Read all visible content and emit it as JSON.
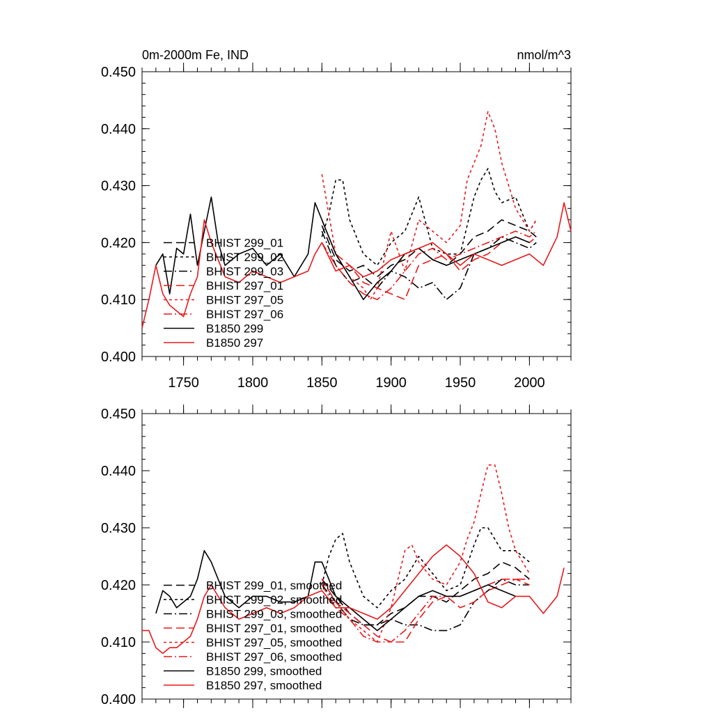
{
  "figure": {
    "title_left": "0m-2000m Fe, IND",
    "title_right": "nmol/m^3"
  },
  "chart_data": [
    {
      "type": "line",
      "panel": "top",
      "title": "0m-2000m Fe, IND",
      "units": "nmol/m^3",
      "xlim": [
        1720,
        2030
      ],
      "ylim": [
        0.4,
        0.45
      ],
      "x_ticks": [
        1750,
        1800,
        1850,
        1900,
        1950,
        2000
      ],
      "x_tick_labels": [
        "1750",
        "1800",
        "1850",
        "1900",
        "1950",
        "2000"
      ],
      "y_ticks": [
        0.4,
        0.41,
        0.42,
        0.43,
        0.44,
        0.45
      ],
      "y_tick_labels": [
        "0.400",
        "0.410",
        "0.420",
        "0.430",
        "0.440",
        "0.450"
      ],
      "legend_position": "lower-left",
      "series": [
        {
          "name": "BHIST 299_01",
          "color": "#000000",
          "dash": "long-dash",
          "x": [
            1850,
            1860,
            1870,
            1880,
            1890,
            1900,
            1910,
            1920,
            1930,
            1940,
            1950,
            1960,
            1970,
            1980,
            1990,
            2000,
            2005
          ],
          "y": [
            0.423,
            0.417,
            0.415,
            0.416,
            0.414,
            0.416,
            0.417,
            0.419,
            0.417,
            0.416,
            0.418,
            0.421,
            0.422,
            0.424,
            0.423,
            0.422,
            0.421
          ]
        },
        {
          "name": "BHIST 299_02",
          "color": "#000000",
          "dash": "short-dash",
          "x": [
            1850,
            1855,
            1860,
            1865,
            1870,
            1880,
            1890,
            1900,
            1910,
            1920,
            1930,
            1940,
            1950,
            1960,
            1965,
            1970,
            1975,
            1980,
            1990,
            2000,
            2005
          ],
          "y": [
            0.421,
            0.425,
            0.431,
            0.431,
            0.424,
            0.418,
            0.416,
            0.42,
            0.422,
            0.428,
            0.419,
            0.418,
            0.418,
            0.428,
            0.431,
            0.433,
            0.429,
            0.427,
            0.428,
            0.422,
            0.424
          ]
        },
        {
          "name": "BHIST 299_03",
          "color": "#000000",
          "dash": "dash-dot",
          "x": [
            1850,
            1860,
            1870,
            1880,
            1890,
            1900,
            1910,
            1920,
            1930,
            1940,
            1950,
            1960,
            1970,
            1980,
            1990,
            2000,
            2005
          ],
          "y": [
            0.422,
            0.416,
            0.413,
            0.414,
            0.412,
            0.415,
            0.414,
            0.412,
            0.413,
            0.41,
            0.412,
            0.418,
            0.419,
            0.421,
            0.42,
            0.419,
            0.42
          ]
        },
        {
          "name": "BHIST 297_01",
          "color": "#e8191c",
          "dash": "long-dash",
          "x": [
            1850,
            1860,
            1870,
            1880,
            1890,
            1900,
            1910,
            1920,
            1930,
            1940,
            1950,
            1960,
            1970,
            1980,
            1990,
            2000,
            2005
          ],
          "y": [
            0.424,
            0.418,
            0.416,
            0.413,
            0.412,
            0.411,
            0.41,
            0.416,
            0.417,
            0.418,
            0.415,
            0.417,
            0.418,
            0.42,
            0.421,
            0.42,
            0.421
          ]
        },
        {
          "name": "BHIST 297_05",
          "color": "#e8191c",
          "dash": "short-dash",
          "x": [
            1850,
            1860,
            1870,
            1880,
            1885,
            1890,
            1900,
            1910,
            1920,
            1930,
            1940,
            1950,
            1955,
            1960,
            1965,
            1970,
            1975,
            1980,
            1985,
            1990,
            2000,
            2005
          ],
          "y": [
            0.432,
            0.418,
            0.414,
            0.412,
            0.41,
            0.412,
            0.422,
            0.415,
            0.424,
            0.422,
            0.42,
            0.423,
            0.431,
            0.434,
            0.437,
            0.443,
            0.44,
            0.434,
            0.43,
            0.426,
            0.422,
            0.424
          ]
        },
        {
          "name": "BHIST 297_06",
          "color": "#e8191c",
          "dash": "dash-dot",
          "x": [
            1850,
            1860,
            1870,
            1880,
            1890,
            1900,
            1910,
            1920,
            1930,
            1940,
            1950,
            1960,
            1970,
            1980,
            1990,
            2000,
            2005
          ],
          "y": [
            0.42,
            0.416,
            0.413,
            0.411,
            0.41,
            0.412,
            0.415,
            0.418,
            0.419,
            0.417,
            0.418,
            0.419,
            0.42,
            0.421,
            0.422,
            0.421,
            0.422
          ]
        },
        {
          "name": "B1850 299",
          "color": "#000000",
          "dash": "solid",
          "x": [
            1730,
            1735,
            1740,
            1745,
            1750,
            1755,
            1760,
            1765,
            1770,
            1775,
            1780,
            1790,
            1800,
            1810,
            1820,
            1830,
            1840,
            1845,
            1850,
            1860,
            1870,
            1880,
            1890,
            1900,
            1910,
            1920,
            1930,
            1940,
            1950,
            1960,
            1970,
            1980,
            1990,
            2000
          ],
          "y": [
            0.416,
            0.418,
            0.411,
            0.419,
            0.418,
            0.425,
            0.416,
            0.422,
            0.428,
            0.42,
            0.416,
            0.418,
            0.419,
            0.416,
            0.418,
            0.414,
            0.418,
            0.427,
            0.424,
            0.418,
            0.414,
            0.41,
            0.413,
            0.415,
            0.418,
            0.419,
            0.417,
            0.416,
            0.417,
            0.418,
            0.419,
            0.42,
            0.421,
            0.42
          ]
        },
        {
          "name": "B1850 297",
          "color": "#e8191c",
          "dash": "solid",
          "x": [
            1720,
            1725,
            1730,
            1735,
            1740,
            1745,
            1750,
            1755,
            1760,
            1765,
            1770,
            1780,
            1790,
            1800,
            1810,
            1820,
            1830,
            1840,
            1845,
            1850,
            1860,
            1870,
            1880,
            1890,
            1900,
            1910,
            1920,
            1930,
            1940,
            1950,
            1960,
            1970,
            1980,
            1990,
            2000,
            2010,
            2020,
            2025,
            2030
          ],
          "y": [
            0.405,
            0.41,
            0.416,
            0.411,
            0.409,
            0.408,
            0.407,
            0.411,
            0.414,
            0.424,
            0.42,
            0.414,
            0.413,
            0.415,
            0.414,
            0.413,
            0.414,
            0.415,
            0.418,
            0.42,
            0.415,
            0.416,
            0.414,
            0.415,
            0.417,
            0.418,
            0.419,
            0.42,
            0.418,
            0.416,
            0.418,
            0.417,
            0.416,
            0.417,
            0.418,
            0.416,
            0.421,
            0.427,
            0.422
          ]
        }
      ]
    },
    {
      "type": "line",
      "panel": "bottom",
      "xlim": [
        1720,
        2030
      ],
      "ylim": [
        0.4,
        0.45
      ],
      "y_ticks": [
        0.4,
        0.41,
        0.42,
        0.43,
        0.44,
        0.45
      ],
      "y_tick_labels": [
        "0.400",
        "0.410",
        "0.420",
        "0.430",
        "0.440",
        "0.450"
      ],
      "legend_position": "lower-left",
      "series": [
        {
          "name": "BHIST 299_01, smoothed",
          "color": "#000000",
          "dash": "long-dash",
          "x": [
            1850,
            1860,
            1870,
            1880,
            1890,
            1900,
            1910,
            1920,
            1930,
            1940,
            1950,
            1960,
            1970,
            1980,
            1990,
            2000
          ],
          "y": [
            0.421,
            0.418,
            0.415,
            0.413,
            0.413,
            0.415,
            0.416,
            0.418,
            0.418,
            0.417,
            0.419,
            0.421,
            0.422,
            0.424,
            0.423,
            0.421
          ]
        },
        {
          "name": "BHIST 299_02, smoothed",
          "color": "#000000",
          "dash": "short-dash",
          "x": [
            1850,
            1855,
            1860,
            1865,
            1870,
            1880,
            1890,
            1900,
            1910,
            1920,
            1930,
            1940,
            1950,
            1960,
            1965,
            1970,
            1975,
            1980,
            1990,
            2000
          ],
          "y": [
            0.42,
            0.425,
            0.428,
            0.429,
            0.424,
            0.418,
            0.416,
            0.419,
            0.421,
            0.425,
            0.422,
            0.419,
            0.42,
            0.427,
            0.43,
            0.43,
            0.428,
            0.426,
            0.426,
            0.424
          ]
        },
        {
          "name": "BHIST 299_03, smoothed",
          "color": "#000000",
          "dash": "dash-dot",
          "x": [
            1850,
            1860,
            1870,
            1880,
            1890,
            1900,
            1910,
            1920,
            1930,
            1940,
            1950,
            1960,
            1970,
            1980,
            1990,
            2000
          ],
          "y": [
            0.42,
            0.417,
            0.414,
            0.413,
            0.413,
            0.414,
            0.413,
            0.413,
            0.412,
            0.412,
            0.413,
            0.417,
            0.419,
            0.421,
            0.42,
            0.42
          ]
        },
        {
          "name": "BHIST 297_01, smoothed",
          "color": "#e8191c",
          "dash": "long-dash",
          "x": [
            1850,
            1860,
            1870,
            1880,
            1890,
            1900,
            1910,
            1920,
            1930,
            1940,
            1950,
            1960,
            1970,
            1980,
            1990,
            2000
          ],
          "y": [
            0.421,
            0.417,
            0.415,
            0.413,
            0.411,
            0.41,
            0.41,
            0.414,
            0.417,
            0.418,
            0.416,
            0.417,
            0.419,
            0.42,
            0.421,
            0.42
          ]
        },
        {
          "name": "BHIST 297_05, smoothed",
          "color": "#e8191c",
          "dash": "short-dash",
          "x": [
            1850,
            1860,
            1870,
            1880,
            1890,
            1900,
            1910,
            1915,
            1920,
            1930,
            1940,
            1950,
            1955,
            1960,
            1965,
            1970,
            1975,
            1980,
            1985,
            1990,
            2000
          ],
          "y": [
            0.421,
            0.417,
            0.414,
            0.412,
            0.41,
            0.416,
            0.426,
            0.427,
            0.424,
            0.421,
            0.42,
            0.424,
            0.428,
            0.431,
            0.436,
            0.441,
            0.441,
            0.436,
            0.43,
            0.426,
            0.422
          ]
        },
        {
          "name": "BHIST 297_06, smoothed",
          "color": "#e8191c",
          "dash": "dash-dot",
          "x": [
            1850,
            1860,
            1870,
            1880,
            1890,
            1900,
            1910,
            1920,
            1930,
            1940,
            1950,
            1960,
            1970,
            1980,
            1990,
            2000
          ],
          "y": [
            0.42,
            0.416,
            0.414,
            0.411,
            0.41,
            0.41,
            0.412,
            0.415,
            0.418,
            0.418,
            0.418,
            0.419,
            0.42,
            0.421,
            0.421,
            0.421
          ]
        },
        {
          "name": "B1850 299, smoothed",
          "color": "#000000",
          "dash": "solid",
          "x": [
            1730,
            1735,
            1740,
            1745,
            1750,
            1755,
            1760,
            1765,
            1770,
            1780,
            1790,
            1800,
            1810,
            1820,
            1830,
            1840,
            1845,
            1850,
            1860,
            1870,
            1880,
            1890,
            1900,
            1910,
            1920,
            1930,
            1940,
            1950,
            1960,
            1970,
            1980,
            1990
          ],
          "y": [
            0.415,
            0.419,
            0.418,
            0.416,
            0.417,
            0.418,
            0.421,
            0.426,
            0.424,
            0.418,
            0.416,
            0.418,
            0.418,
            0.417,
            0.417,
            0.418,
            0.424,
            0.424,
            0.418,
            0.416,
            0.414,
            0.412,
            0.414,
            0.416,
            0.418,
            0.419,
            0.418,
            0.418,
            0.419,
            0.42,
            0.419,
            0.418
          ]
        },
        {
          "name": "B1850 297, smoothed",
          "color": "#e8191c",
          "dash": "solid",
          "x": [
            1720,
            1725,
            1730,
            1735,
            1740,
            1745,
            1750,
            1755,
            1760,
            1765,
            1770,
            1780,
            1790,
            1800,
            1810,
            1820,
            1830,
            1840,
            1850,
            1860,
            1870,
            1880,
            1890,
            1900,
            1910,
            1920,
            1930,
            1940,
            1945,
            1950,
            1960,
            1970,
            1980,
            1990,
            2000,
            2010,
            2020,
            2025
          ],
          "y": [
            0.412,
            0.412,
            0.409,
            0.408,
            0.409,
            0.409,
            0.41,
            0.411,
            0.414,
            0.418,
            0.42,
            0.416,
            0.414,
            0.415,
            0.416,
            0.415,
            0.416,
            0.418,
            0.419,
            0.416,
            0.416,
            0.415,
            0.414,
            0.416,
            0.419,
            0.422,
            0.425,
            0.427,
            0.426,
            0.425,
            0.422,
            0.417,
            0.416,
            0.418,
            0.418,
            0.415,
            0.418,
            0.423
          ]
        }
      ]
    }
  ]
}
